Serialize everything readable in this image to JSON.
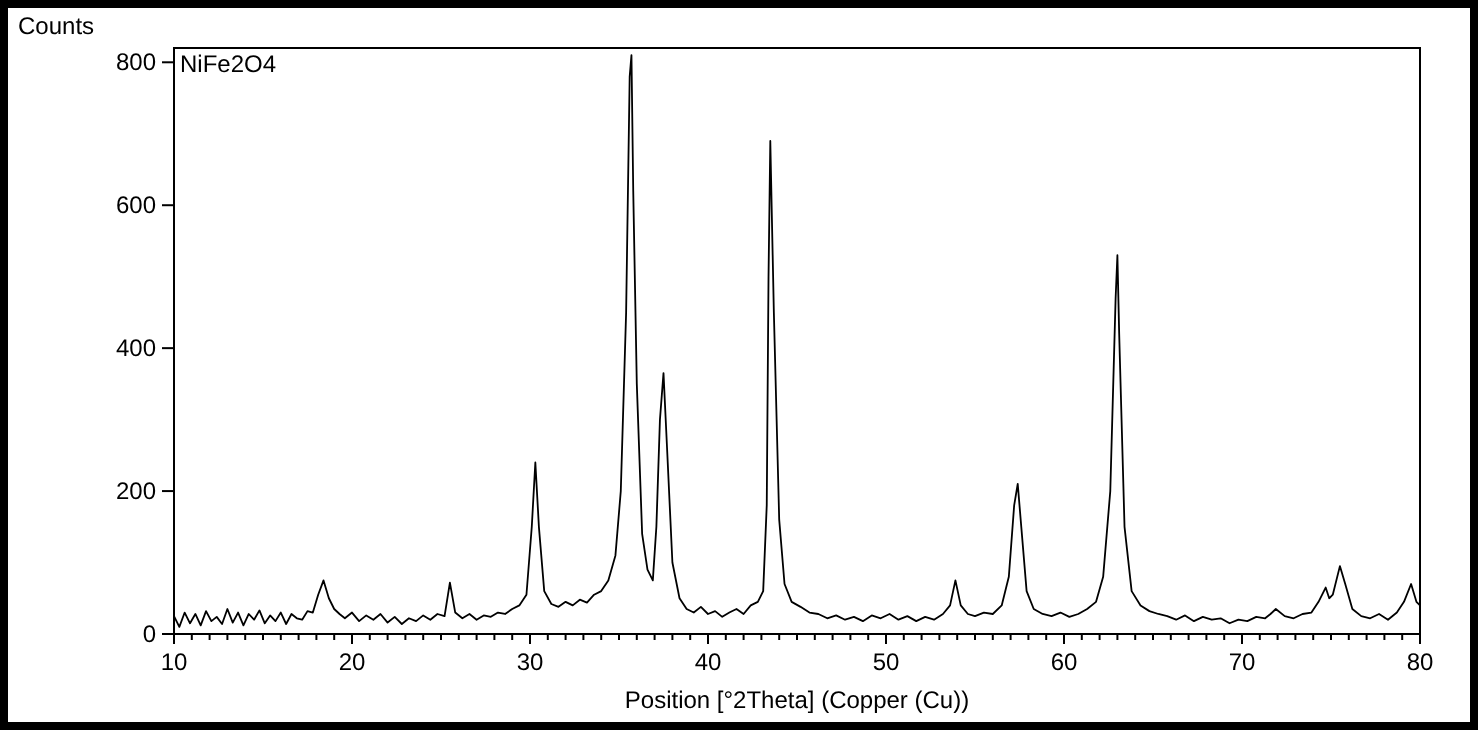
{
  "chart_data": {
    "type": "line",
    "title": "NiFe2O4",
    "xlabel": "Position [°2Theta] (Copper (Cu))",
    "ylabel": "Counts",
    "x": [
      10,
      10.3,
      10.6,
      10.9,
      11.2,
      11.5,
      11.8,
      12.1,
      12.4,
      12.7,
      13,
      13.3,
      13.6,
      13.9,
      14.2,
      14.5,
      14.8,
      15.1,
      15.4,
      15.7,
      16,
      16.3,
      16.6,
      16.9,
      17.2,
      17.5,
      17.8,
      18.1,
      18.4,
      18.7,
      19,
      19.3,
      19.6,
      20,
      20.4,
      20.8,
      21.2,
      21.6,
      22,
      22.4,
      22.8,
      23.2,
      23.6,
      24,
      24.4,
      24.8,
      25.2,
      25.5,
      25.8,
      26.2,
      26.6,
      27,
      27.4,
      27.8,
      28.2,
      28.6,
      29,
      29.4,
      29.8,
      30.1,
      30.3,
      30.5,
      30.8,
      31.2,
      31.6,
      32,
      32.4,
      32.8,
      33.2,
      33.6,
      34,
      34.4,
      34.8,
      35.1,
      35.4,
      35.6,
      35.7,
      35.8,
      36,
      36.3,
      36.6,
      36.9,
      37.1,
      37.3,
      37.5,
      37.7,
      38,
      38.4,
      38.8,
      39.2,
      39.6,
      40,
      40.4,
      40.8,
      41.2,
      41.6,
      42,
      42.4,
      42.8,
      43.1,
      43.3,
      43.4,
      43.5,
      43.7,
      44,
      44.3,
      44.7,
      45.2,
      45.7,
      46.2,
      46.7,
      47.2,
      47.7,
      48.2,
      48.7,
      49.2,
      49.7,
      50.2,
      50.7,
      51.2,
      51.7,
      52.2,
      52.7,
      53.2,
      53.6,
      53.9,
      54.2,
      54.6,
      55,
      55.5,
      56,
      56.5,
      56.9,
      57.2,
      57.4,
      57.6,
      57.9,
      58.3,
      58.8,
      59.3,
      59.8,
      60.3,
      60.8,
      61.3,
      61.8,
      62.2,
      62.6,
      62.9,
      63,
      63.1,
      63.4,
      63.8,
      64.3,
      64.8,
      65.3,
      65.8,
      66.3,
      66.8,
      67.3,
      67.8,
      68.3,
      68.8,
      69.3,
      69.8,
      70.3,
      70.8,
      71.3,
      71.6,
      71.9,
      72.4,
      72.9,
      73.4,
      73.9,
      74.3,
      74.7,
      74.9,
      75.1,
      75.5,
      75.8,
      76.2,
      76.7,
      77.2,
      77.7,
      78.2,
      78.7,
      79.1,
      79.5,
      79.8,
      80
    ],
    "values": [
      25,
      10,
      30,
      15,
      28,
      12,
      32,
      18,
      24,
      14,
      35,
      16,
      30,
      12,
      28,
      20,
      33,
      15,
      26,
      18,
      30,
      14,
      28,
      22,
      20,
      32,
      30,
      55,
      75,
      50,
      35,
      28,
      22,
      30,
      18,
      26,
      20,
      28,
      16,
      24,
      14,
      22,
      18,
      26,
      20,
      28,
      25,
      72,
      30,
      22,
      28,
      20,
      26,
      24,
      30,
      28,
      35,
      40,
      55,
      150,
      240,
      150,
      60,
      42,
      38,
      45,
      40,
      48,
      44,
      55,
      60,
      75,
      110,
      200,
      450,
      780,
      810,
      620,
      350,
      140,
      90,
      75,
      150,
      300,
      365,
      260,
      100,
      50,
      35,
      30,
      38,
      28,
      32,
      24,
      30,
      35,
      28,
      40,
      45,
      60,
      180,
      500,
      690,
      450,
      160,
      70,
      45,
      38,
      30,
      28,
      22,
      26,
      20,
      24,
      18,
      26,
      22,
      28,
      20,
      25,
      18,
      24,
      20,
      28,
      40,
      75,
      40,
      28,
      25,
      30,
      28,
      40,
      80,
      180,
      210,
      150,
      60,
      35,
      28,
      25,
      30,
      24,
      28,
      35,
      45,
      80,
      200,
      470,
      530,
      420,
      150,
      60,
      40,
      32,
      28,
      25,
      20,
      26,
      18,
      24,
      20,
      22,
      15,
      20,
      18,
      24,
      22,
      28,
      35,
      25,
      22,
      28,
      30,
      45,
      65,
      50,
      55,
      95,
      70,
      35,
      25,
      22,
      28,
      20,
      30,
      45,
      70,
      45,
      40
    ],
    "color": "#000000",
    "xlim": [
      10,
      80
    ],
    "ylim": [
      0,
      820
    ],
    "xticks": [
      10,
      {
        "value": 11,
        "label": null
      },
      {
        "value": 12,
        "label": null
      },
      {
        "value": 13,
        "label": null
      },
      {
        "value": 14,
        "label": null
      },
      {
        "value": 15,
        "label": null
      },
      {
        "value": 16,
        "label": null
      },
      {
        "value": 17,
        "label": null
      },
      {
        "value": 18,
        "label": null
      },
      {
        "value": 19,
        "label": null
      },
      20,
      {
        "value": 21,
        "label": null
      },
      {
        "value": 22,
        "label": null
      },
      {
        "value": 23,
        "label": null
      },
      {
        "value": 24,
        "label": null
      },
      {
        "value": 25,
        "label": null
      },
      {
        "value": 26,
        "label": null
      },
      {
        "value": 27,
        "label": null
      },
      {
        "value": 28,
        "label": null
      },
      {
        "value": 29,
        "label": null
      },
      30,
      {
        "value": 31,
        "label": null
      },
      {
        "value": 32,
        "label": null
      },
      {
        "value": 33,
        "label": null
      },
      {
        "value": 34,
        "label": null
      },
      {
        "value": 35,
        "label": null
      },
      {
        "value": 36,
        "label": null
      },
      {
        "value": 37,
        "label": null
      },
      {
        "value": 38,
        "label": null
      },
      {
        "value": 39,
        "label": null
      },
      40,
      {
        "value": 41,
        "label": null
      },
      {
        "value": 42,
        "label": null
      },
      {
        "value": 43,
        "label": null
      },
      {
        "value": 44,
        "label": null
      },
      {
        "value": 45,
        "label": null
      },
      {
        "value": 46,
        "label": null
      },
      {
        "value": 47,
        "label": null
      },
      {
        "value": 48,
        "label": null
      },
      {
        "value": 49,
        "label": null
      },
      50,
      {
        "value": 51,
        "label": null
      },
      {
        "value": 52,
        "label": null
      },
      {
        "value": 53,
        "label": null
      },
      {
        "value": 54,
        "label": null
      },
      {
        "value": 55,
        "label": null
      },
      {
        "value": 56,
        "label": null
      },
      {
        "value": 57,
        "label": null
      },
      {
        "value": 58,
        "label": null
      },
      {
        "value": 59,
        "label": null
      },
      60,
      {
        "value": 61,
        "label": null
      },
      {
        "value": 62,
        "label": null
      },
      {
        "value": 63,
        "label": null
      },
      {
        "value": 64,
        "label": null
      },
      {
        "value": 65,
        "label": null
      },
      {
        "value": 66,
        "label": null
      },
      {
        "value": 67,
        "label": null
      },
      {
        "value": 68,
        "label": null
      },
      {
        "value": 69,
        "label": null
      },
      70,
      {
        "value": 71,
        "label": null
      },
      {
        "value": 72,
        "label": null
      },
      {
        "value": 73,
        "label": null
      },
      {
        "value": 74,
        "label": null
      },
      {
        "value": 75,
        "label": null
      },
      {
        "value": 76,
        "label": null
      },
      {
        "value": 77,
        "label": null
      },
      {
        "value": 78,
        "label": null
      },
      {
        "value": 79,
        "label": null
      },
      80
    ],
    "yticks": [
      0,
      200,
      400,
      600,
      800
    ],
    "grid": false,
    "legend": false,
    "marker": "none",
    "line_style": "solid"
  }
}
